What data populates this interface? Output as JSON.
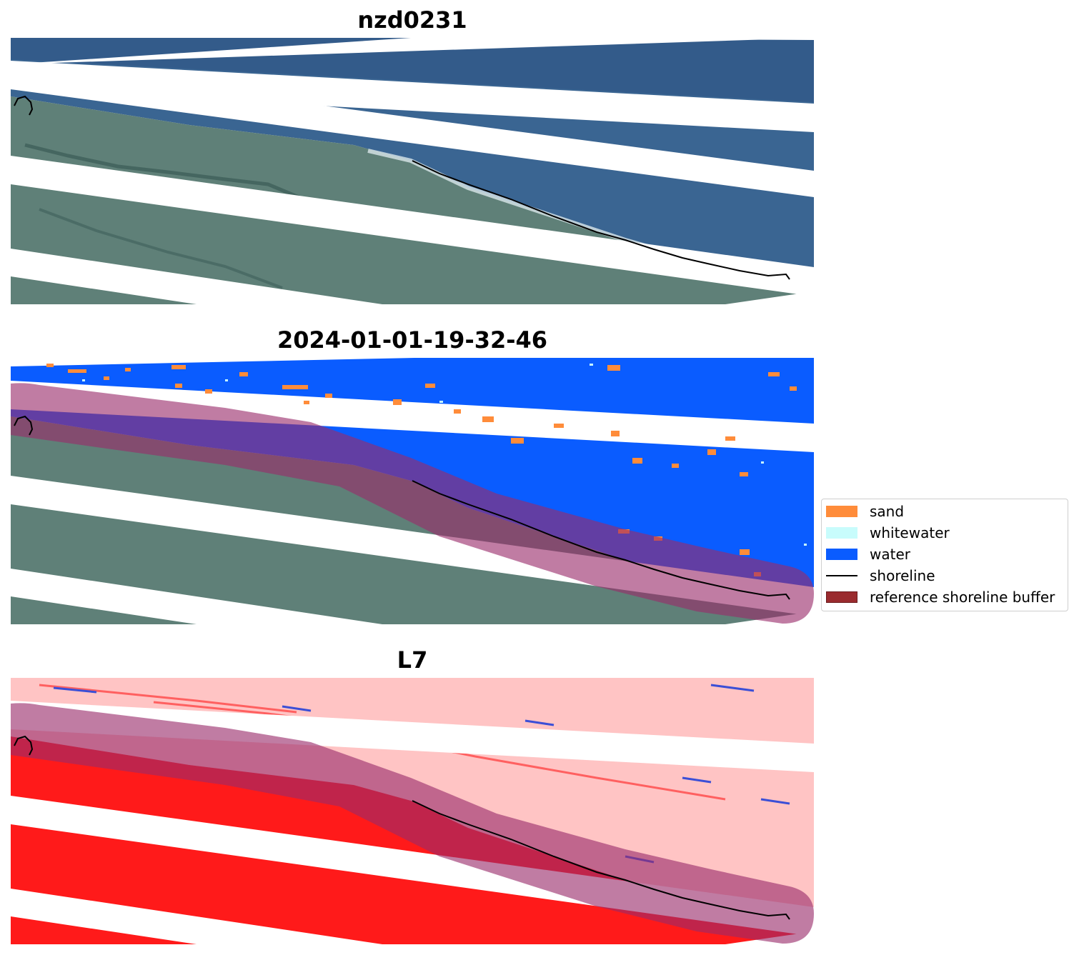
{
  "panels": [
    {
      "title": "nzd0231",
      "kind": "rgb"
    },
    {
      "title": "2024-01-01-19-32-46",
      "kind": "classified"
    },
    {
      "title": "L7",
      "kind": "index"
    }
  ],
  "legend": {
    "items": [
      {
        "label": "sand",
        "color": "#ff8c3a",
        "type": "patch"
      },
      {
        "label": "whitewater",
        "color": "#c8fcfc",
        "type": "patch"
      },
      {
        "label": "water",
        "color": "#0a5cff",
        "type": "patch"
      },
      {
        "label": "shoreline",
        "color": "#000000",
        "type": "line"
      },
      {
        "label": "reference shoreline buffer",
        "color": "#9a2b2e",
        "type": "patch"
      }
    ]
  },
  "colors": {
    "ocean": "#3a6592",
    "land": "#5f8078",
    "water_class": "#0a5cff",
    "sand": "#ff8c3a",
    "buffer": "#9a2b6a",
    "index_land": "#ff1a1a",
    "index_water": "#ffc4c4",
    "shoreline": "#000000"
  }
}
